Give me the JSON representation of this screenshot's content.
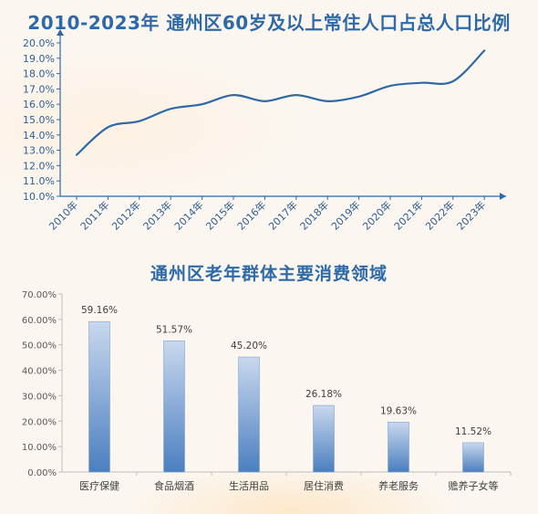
{
  "chart_data": [
    {
      "type": "line",
      "title": "2010-2023年  通州区60岁及以上常住人口占总人口比例",
      "categories": [
        "2010年",
        "2011年",
        "2012年",
        "2013年",
        "2014年",
        "2015年",
        "2016年",
        "2017年",
        "2018年",
        "2019年",
        "2020年",
        "2021年",
        "2022年",
        "2023年"
      ],
      "values": [
        12.7,
        14.5,
        14.9,
        15.7,
        16.0,
        16.6,
        16.2,
        16.6,
        16.2,
        16.5,
        17.2,
        17.4,
        17.5,
        19.5
      ],
      "ylim": [
        10.0,
        20.0
      ],
      "yticks": [
        "20.0%",
        "19.0%",
        "18.0%",
        "17.0%",
        "16.0%",
        "15.0%",
        "14.0%",
        "13.0%",
        "12.0%",
        "11.0%",
        "10.0%"
      ],
      "grid": false,
      "color": "#2e6aa8"
    },
    {
      "type": "bar",
      "title": "通州区老年群体主要消费领域",
      "categories": [
        "医疗保健",
        "食品烟酒",
        "生活用品",
        "居住消费",
        "养老服务",
        "赡养子女等"
      ],
      "values": [
        59.16,
        51.57,
        45.2,
        26.18,
        19.63,
        11.52
      ],
      "data_labels": [
        "59.16%",
        "51.57%",
        "45.20%",
        "26.18%",
        "19.63%",
        "11.52%"
      ],
      "ylim": [
        0,
        70
      ],
      "yticks": [
        "70.00%",
        "60.00%",
        "50.00%",
        "40.00%",
        "30.00%",
        "20.00%",
        "10.00%",
        "0.00%"
      ],
      "grid": false,
      "bar_color_top": "#c9d8ee",
      "bar_color_bottom": "#4a7fc0"
    }
  ]
}
